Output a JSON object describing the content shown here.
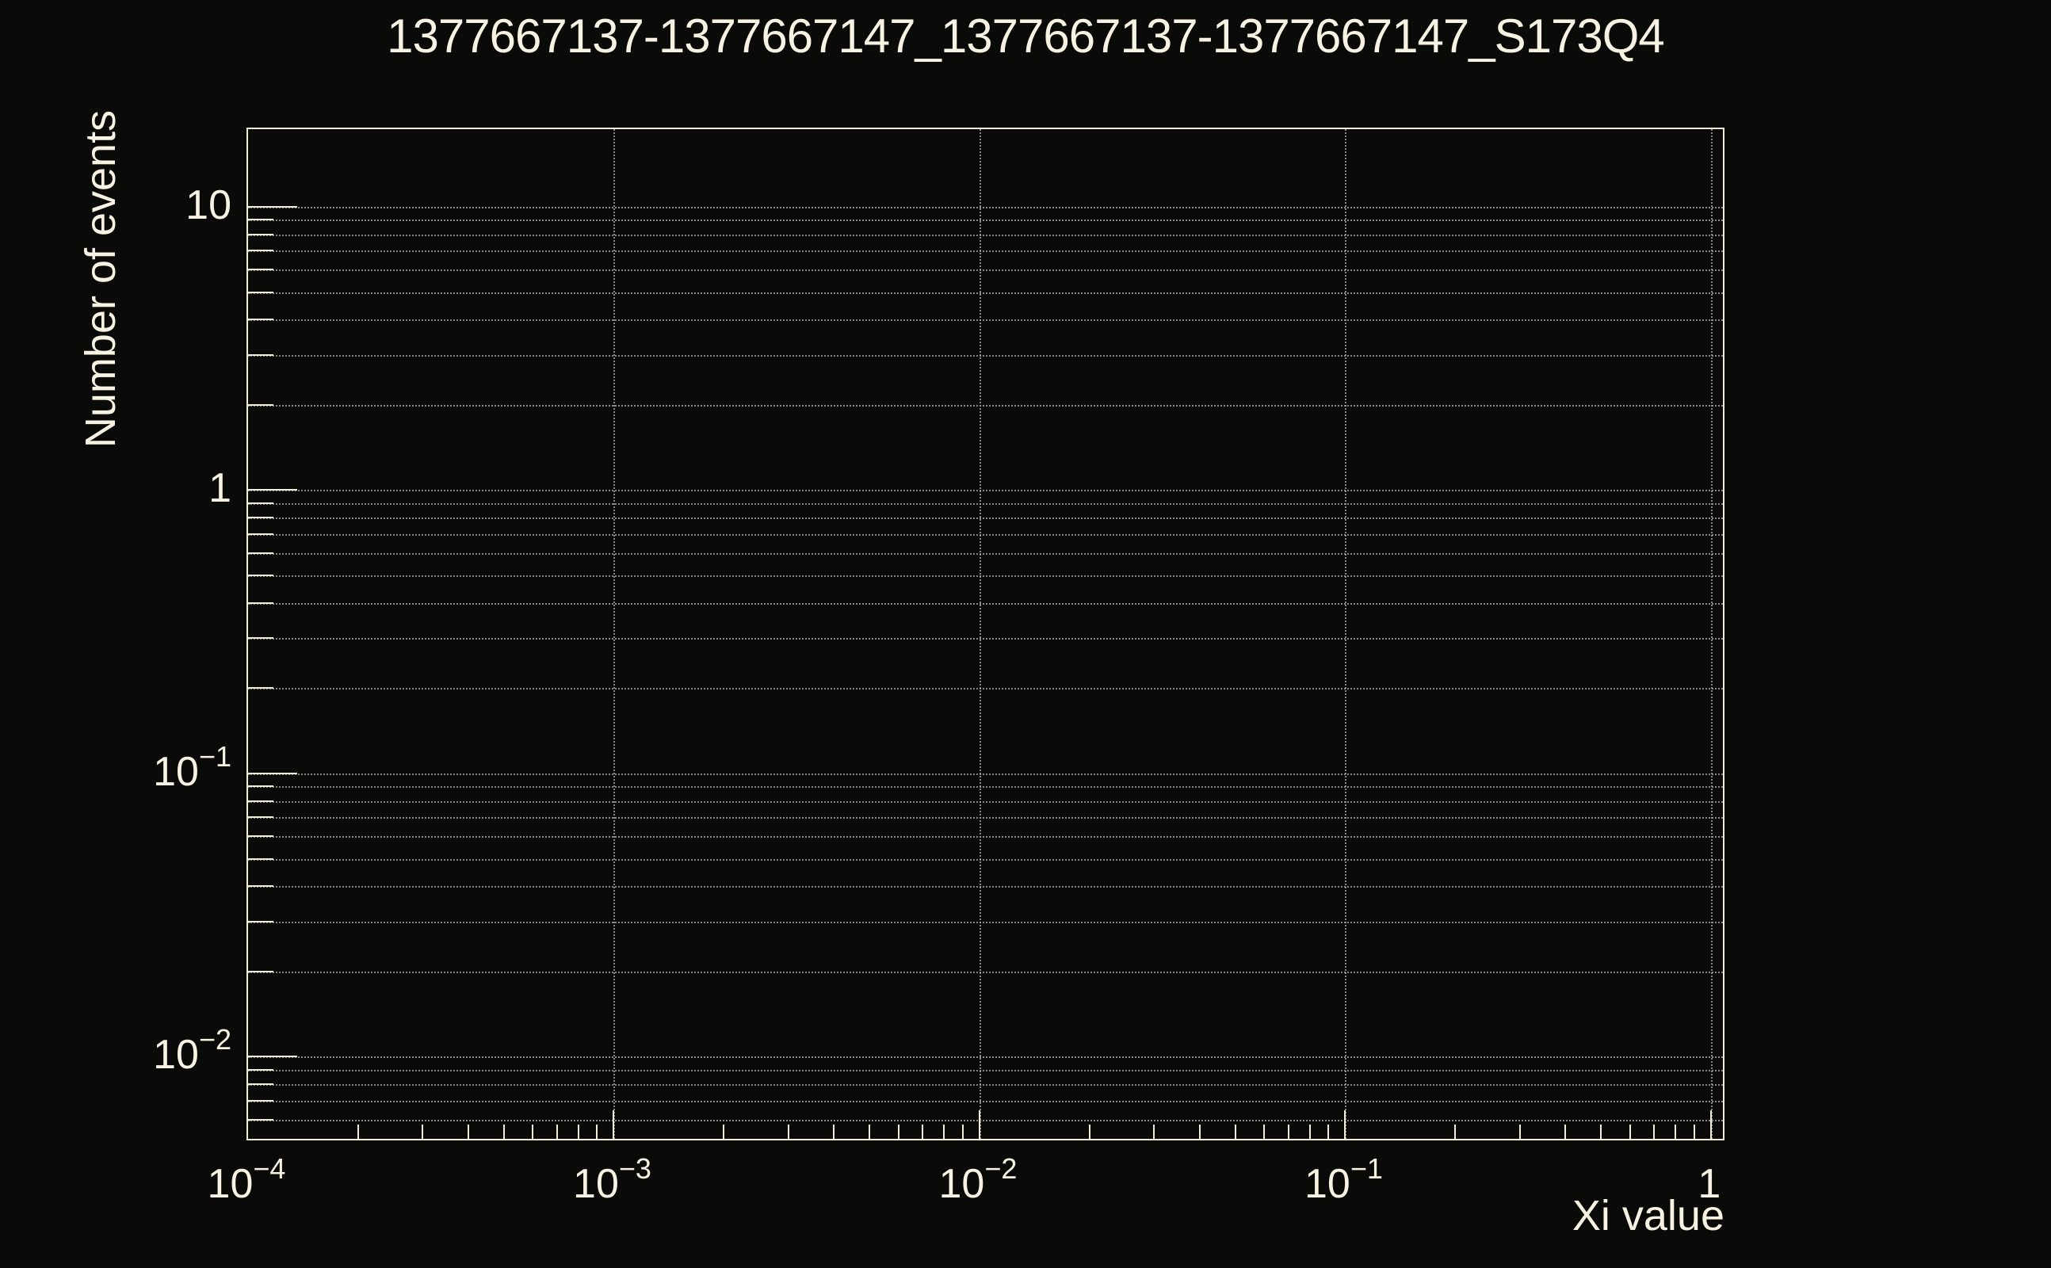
{
  "title": "1377667137-1377667147_1377667137-1377667147_S173Q4",
  "colors": {
    "background": "#0a0a08",
    "text": "#f7f2e1",
    "axis_line": "#f3edd7",
    "grid_line": "#a6a6a6"
  },
  "chart_data": {
    "type": "histogram",
    "title": "1377667137-1377667147_1377667137-1377667147_S173Q4",
    "xlabel": "Xi value",
    "ylabel": "Number of events",
    "x_scale": "log",
    "y_scale": "log",
    "xlim": [
      0.0001,
      1.1
    ],
    "ylim": [
      0.005,
      18.8
    ],
    "x_major_ticks": [
      0.0001,
      0.001,
      0.01,
      0.1,
      1
    ],
    "x_major_tick_labels": [
      {
        "base": "10",
        "exp": "−4"
      },
      {
        "base": "10",
        "exp": "−3"
      },
      {
        "base": "10",
        "exp": "−2"
      },
      {
        "base": "10",
        "exp": "−1"
      },
      {
        "base": "1",
        "exp": ""
      }
    ],
    "y_major_ticks": [
      10,
      1,
      0.1,
      0.01
    ],
    "y_major_tick_labels": [
      {
        "base": "10",
        "exp": ""
      },
      {
        "base": "1",
        "exp": ""
      },
      {
        "base": "10",
        "exp": "−1"
      },
      {
        "base": "10",
        "exp": "−2"
      }
    ],
    "minor_ticks_per_decade": [
      2,
      3,
      4,
      5,
      6,
      7,
      8,
      9
    ],
    "grid": {
      "horizontal_at": "all_y_ticks",
      "vertical_at": "x_major_ticks",
      "style": "dotted"
    },
    "legend": null,
    "series": []
  }
}
